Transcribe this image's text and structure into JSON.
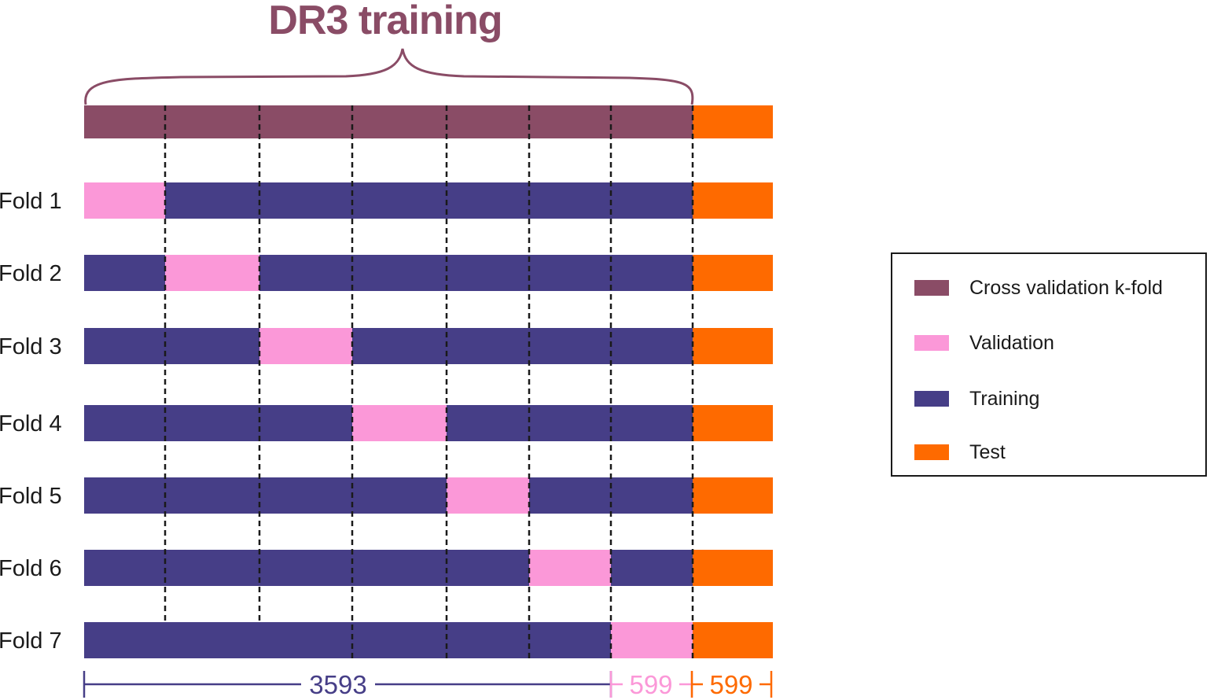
{
  "title": "DR3 training",
  "colors": {
    "cv": "#8a4c66",
    "validation": "#fb98d8",
    "training": "#463e87",
    "test": "#fe6a00",
    "text": "#1a1a1a"
  },
  "folds": [
    {
      "label": "Fold 1",
      "validation_segment": 1
    },
    {
      "label": "Fold 2",
      "validation_segment": 2
    },
    {
      "label": "Fold 3",
      "validation_segment": 3
    },
    {
      "label": "Fold 4",
      "validation_segment": 4
    },
    {
      "label": "Fold 5",
      "validation_segment": 5
    },
    {
      "label": "Fold 6",
      "validation_segment": 6
    },
    {
      "label": "Fold 7",
      "validation_segment": 7
    }
  ],
  "sizes": {
    "training": "3593",
    "validation": "599",
    "test": "599"
  },
  "legend": [
    {
      "label": "Cross validation k-fold",
      "color": "#8a4c66"
    },
    {
      "label": "Validation",
      "color": "#fb98d8"
    },
    {
      "label": "Training",
      "color": "#463e87"
    },
    {
      "label": "Test",
      "color": "#fe6a00"
    }
  ]
}
